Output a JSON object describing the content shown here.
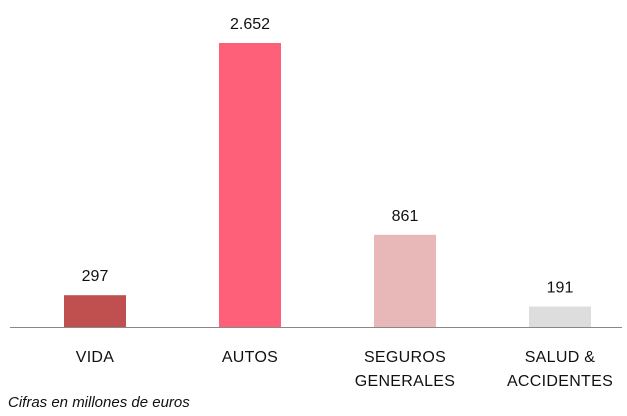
{
  "chart_data": {
    "type": "bar",
    "categories": [
      "VIDA",
      "AUTOS",
      "SEGUROS GENERALES",
      "SALUD & ACCIDENTES"
    ],
    "values": [
      297,
      2652,
      861,
      191
    ],
    "value_labels": [
      "297",
      "2.652",
      "861",
      "191"
    ],
    "colors": [
      "#c0504f",
      "#ff6079",
      "#e8b8b8",
      "#dddddd"
    ],
    "note": "Cifras en millones de euros"
  }
}
